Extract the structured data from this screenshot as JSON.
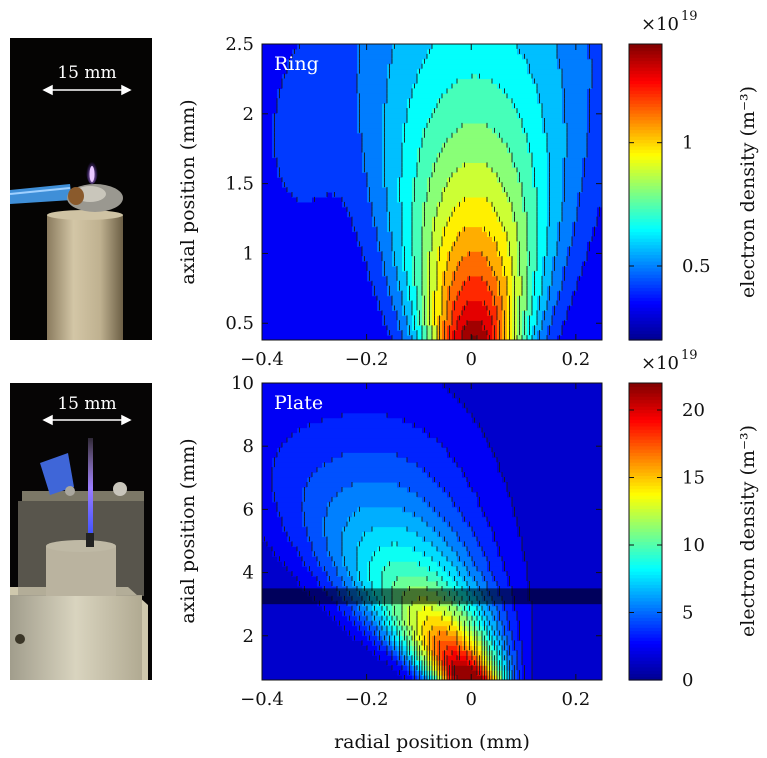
{
  "scale_bar_label": "15 mm",
  "colorbar_label": "electron density (m⁻³)",
  "colorbar_multiplier": "×10",
  "colorbar_exponent": "19",
  "xlabel": "radial position (mm)",
  "ylabel": "axial position (mm)",
  "colormap": [
    "#00008f",
    "#0000ff",
    "#0080ff",
    "#00ffff",
    "#80ff80",
    "#ffff00",
    "#ff8000",
    "#ff0000",
    "#800000"
  ],
  "chart_data": [
    {
      "type": "heatmap",
      "panel_label": "Ring",
      "xlim": [
        -0.4,
        0.25
      ],
      "ylim": [
        0.38,
        2.5
      ],
      "xticks": [
        -0.4,
        -0.2,
        0,
        0.2
      ],
      "xtick_labels": [
        "−0.4",
        "−0.2",
        "0",
        "0.2"
      ],
      "yticks": [
        0.5,
        1,
        1.5,
        2,
        2.5
      ],
      "ytick_labels": [
        "0.5",
        "1",
        "1.5",
        "2",
        "2.5"
      ],
      "colorbar": {
        "range": [
          0.2,
          1.4
        ],
        "ticks": [
          0.5,
          1
        ],
        "tick_labels": [
          "0.5",
          "1"
        ]
      },
      "peak": {
        "x": 0.0,
        "y": 0.4,
        "value": 1.4
      },
      "min_value": 0.3,
      "contour_levels": 14
    },
    {
      "type": "heatmap",
      "panel_label": "Plate",
      "xlim": [
        -0.4,
        0.25
      ],
      "ylim": [
        0.6,
        10
      ],
      "xticks": [
        -0.4,
        -0.2,
        0,
        0.2
      ],
      "xtick_labels": [
        "−0.4",
        "−0.2",
        "0",
        "0.2"
      ],
      "yticks": [
        2,
        4,
        6,
        8,
        10
      ],
      "ytick_labels": [
        "2",
        "4",
        "6",
        "8",
        "10"
      ],
      "colorbar": {
        "range": [
          0,
          22
        ],
        "ticks": [
          0,
          5,
          10,
          15,
          20
        ],
        "tick_labels": [
          "0",
          "5",
          "10",
          "15",
          "20"
        ]
      },
      "peak": {
        "x": -0.02,
        "y": 1.1,
        "value": 21
      },
      "min_value": 1,
      "contour_levels": 20,
      "shaded_band_y": [
        3.0,
        3.5
      ]
    }
  ]
}
